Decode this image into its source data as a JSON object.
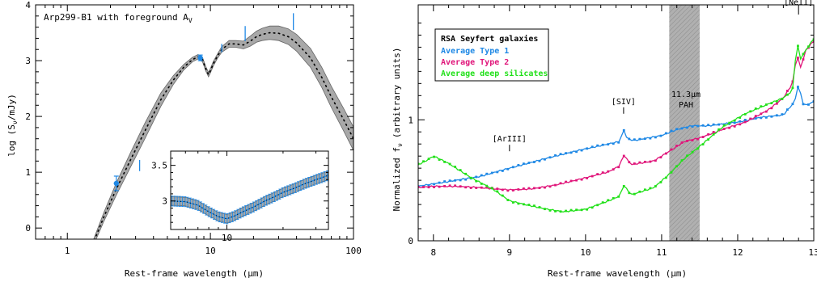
{
  "colors": {
    "band": "#a8a8a8",
    "type1": "#1e88e5",
    "type2": "#e0157a",
    "silicates": "#22e01a",
    "pah": "#b0b0b0"
  },
  "chart_data": [
    {
      "type": "line",
      "title": "Arp299-B1 with foreground A",
      "title_sub": "V",
      "xlabel": "Rest-frame wavelength (μm)",
      "ylabel": "log (S",
      "ylabel_sub": "ν",
      "ylabel_tail": "/mJy)",
      "xscale": "log",
      "xlim": [
        0.6,
        100
      ],
      "ylim": [
        -0.2,
        4
      ],
      "xticks": [
        {
          "v": 1,
          "l": "1"
        },
        {
          "v": 10,
          "l": "10"
        },
        {
          "v": 100,
          "l": "100"
        }
      ],
      "yticks": [
        {
          "v": 0,
          "l": "0"
        },
        {
          "v": 1,
          "l": "1"
        },
        {
          "v": 2,
          "l": "2"
        },
        {
          "v": 3,
          "l": "3"
        },
        {
          "v": 4,
          "l": "4"
        }
      ],
      "model_x": [
        1.5,
        1.8,
        2.2,
        2.8,
        3.5,
        4.5,
        5.5,
        6.5,
        7.5,
        8.2,
        8.8,
        9.3,
        9.7,
        10.0,
        10.5,
        11.2,
        12.0,
        13.5,
        15.0,
        17.0,
        19.0,
        21.0,
        23.0,
        26.0,
        30.0,
        35.0,
        40.0,
        50.0,
        60.0,
        70.0,
        85.0,
        100.0
      ],
      "model_y": [
        -0.3,
        0.2,
        0.7,
        1.25,
        1.75,
        2.3,
        2.65,
        2.88,
        3.02,
        3.07,
        3.02,
        2.85,
        2.75,
        2.82,
        2.95,
        3.08,
        3.2,
        3.3,
        3.3,
        3.28,
        3.35,
        3.43,
        3.47,
        3.5,
        3.49,
        3.43,
        3.32,
        3.05,
        2.7,
        2.35,
        1.95,
        1.6
      ],
      "band_halfwidth": [
        0.05,
        0.08,
        0.11,
        0.13,
        0.14,
        0.12,
        0.08,
        0.05,
        0.04,
        0.04,
        0.04,
        0.04,
        0.04,
        0.04,
        0.04,
        0.04,
        0.05,
        0.06,
        0.06,
        0.07,
        0.09,
        0.1,
        0.11,
        0.12,
        0.13,
        0.14,
        0.15,
        0.17,
        0.18,
        0.19,
        0.2,
        0.21
      ],
      "points": [
        {
          "x": 2.2,
          "y": 0.8,
          "yerr": 0.13
        },
        {
          "x": 8.5,
          "y": 3.05,
          "yerr": 0.05
        }
      ],
      "upper_ticks": [
        {
          "x": 3.2,
          "y1": 1.02,
          "y2": 1.22
        },
        {
          "x": 12.0,
          "y1": 3.15,
          "y2": 3.3
        },
        {
          "x": 17.5,
          "y1": 3.35,
          "y2": 3.62
        },
        {
          "x": 38.0,
          "y1": 3.55,
          "y2": 3.85
        }
      ],
      "inset": {
        "xlim": [
          5,
          35
        ],
        "ylim": [
          2.6,
          3.7
        ],
        "xticks": [
          {
            "v": 10,
            "l": "10"
          }
        ],
        "yticks": [
          {
            "v": 3,
            "l": "3"
          },
          {
            "v": 3.5,
            "l": "3.5"
          }
        ],
        "model_x": [
          5,
          6,
          7,
          8,
          9,
          10,
          11,
          12,
          14,
          16,
          18,
          20,
          23,
          26,
          30,
          35
        ],
        "model_y": [
          3.0,
          2.99,
          2.94,
          2.85,
          2.78,
          2.75,
          2.79,
          2.84,
          2.92,
          3.0,
          3.06,
          3.12,
          3.18,
          3.24,
          3.3,
          3.36
        ],
        "band_halfwidth": 0.06
      }
    },
    {
      "type": "line",
      "xlabel": "Rest-frame wavelength (μm)",
      "ylabel": "Normalized f",
      "ylabel_sub": "ν",
      "ylabel_tail": "(arbitrary units)",
      "xlim": [
        7.8,
        13.0
      ],
      "ylim": [
        0,
        1.95
      ],
      "xticks": [
        {
          "v": 8,
          "l": "8"
        },
        {
          "v": 9,
          "l": "9"
        },
        {
          "v": 10,
          "l": "10"
        },
        {
          "v": 11,
          "l": "11"
        },
        {
          "v": 12,
          "l": "12"
        },
        {
          "v": 13,
          "l": "13"
        }
      ],
      "yticks": [
        {
          "v": 0,
          "l": "0"
        },
        {
          "v": 1,
          "l": "1"
        }
      ],
      "legend": {
        "title": "RSA Seyfert galaxies",
        "placement": "top-left"
      },
      "pah_band": {
        "x0": 11.1,
        "x1": 11.5,
        "label1": "11.3μm",
        "label2": "PAH"
      },
      "annotations": [
        {
          "text": "[ArIII]",
          "x": 9.0,
          "y": 0.74
        },
        {
          "text": "[SIV]",
          "x": 10.5,
          "y": 1.05
        },
        {
          "text": "[NeII]",
          "x": 12.8,
          "y": 1.87
        }
      ],
      "series": [
        {
          "name": "Average Type 1",
          "color": "#1e88e5",
          "x": [
            7.8,
            8.0,
            8.3,
            8.6,
            9.0,
            9.3,
            9.6,
            10.0,
            10.3,
            10.45,
            10.5,
            10.55,
            10.65,
            11.0,
            11.2,
            11.4,
            11.6,
            12.0,
            12.3,
            12.6,
            12.75,
            12.8,
            12.85,
            12.9,
            13.0
          ],
          "y": [
            0.45,
            0.47,
            0.5,
            0.53,
            0.6,
            0.65,
            0.7,
            0.76,
            0.8,
            0.82,
            0.92,
            0.84,
            0.83,
            0.87,
            0.92,
            0.95,
            0.95,
            0.98,
            1.02,
            1.04,
            1.15,
            1.3,
            1.14,
            1.12,
            1.15
          ]
        },
        {
          "name": "Average Type 2",
          "color": "#e0157a",
          "x": [
            7.8,
            8.0,
            8.3,
            8.6,
            9.0,
            9.3,
            9.6,
            10.0,
            10.3,
            10.45,
            10.5,
            10.6,
            10.9,
            11.1,
            11.3,
            11.5,
            11.8,
            12.1,
            12.4,
            12.6,
            12.72,
            12.78,
            12.82,
            12.9,
            13.0
          ],
          "y": [
            0.44,
            0.45,
            0.45,
            0.44,
            0.42,
            0.43,
            0.46,
            0.52,
            0.57,
            0.62,
            0.71,
            0.63,
            0.66,
            0.74,
            0.82,
            0.85,
            0.92,
            0.98,
            1.08,
            1.18,
            1.3,
            1.55,
            1.42,
            1.58,
            1.65
          ]
        },
        {
          "name": "Average deep silicates",
          "color": "#22e01a",
          "x": [
            7.8,
            7.9,
            8.0,
            8.2,
            8.5,
            8.8,
            9.0,
            9.2,
            9.5,
            9.7,
            10.0,
            10.3,
            10.45,
            10.5,
            10.6,
            10.9,
            11.1,
            11.3,
            11.5,
            11.8,
            12.1,
            12.4,
            12.6,
            12.72,
            12.78,
            12.82,
            12.9,
            13.0
          ],
          "y": [
            0.63,
            0.66,
            0.7,
            0.64,
            0.52,
            0.42,
            0.33,
            0.3,
            0.26,
            0.24,
            0.26,
            0.33,
            0.37,
            0.46,
            0.38,
            0.44,
            0.55,
            0.68,
            0.78,
            0.94,
            1.05,
            1.13,
            1.18,
            1.24,
            1.65,
            1.5,
            1.58,
            1.67
          ]
        }
      ]
    }
  ]
}
